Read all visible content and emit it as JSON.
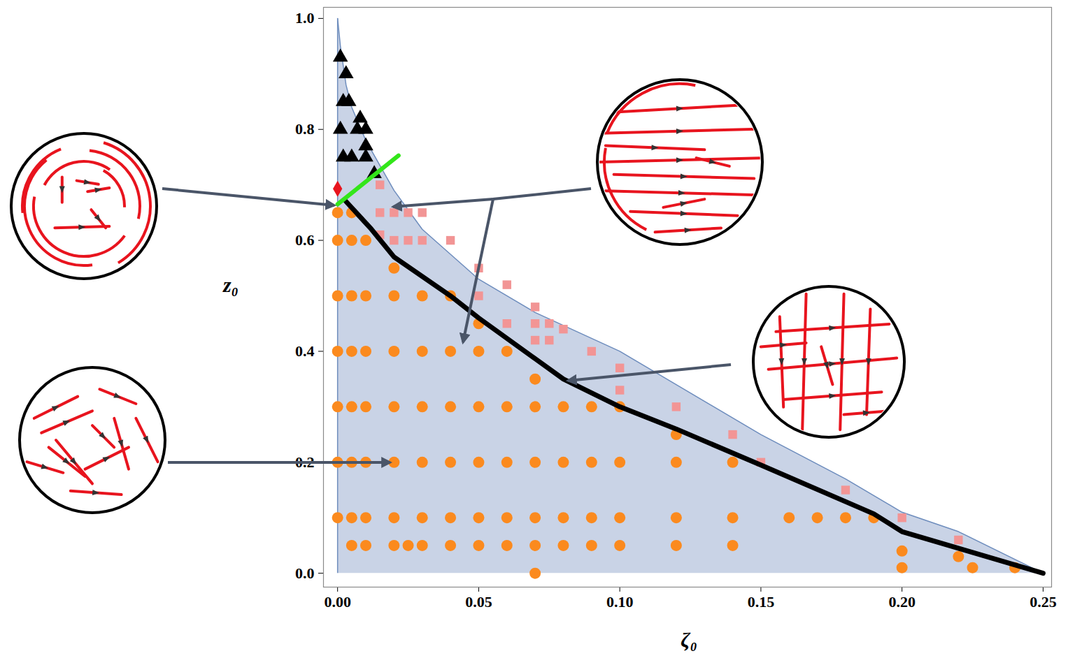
{
  "chart_data": {
    "type": "scatter",
    "x_label": "ζ₀",
    "y_label": "z₀",
    "xlim": [
      -0.005,
      0.253
    ],
    "ylim": [
      -0.025,
      1.02
    ],
    "xticks": [
      {
        "value": 0,
        "label": "0.00"
      },
      {
        "value": 0.05,
        "label": "0.05"
      },
      {
        "value": 0.1,
        "label": "0.10"
      },
      {
        "value": 0.15,
        "label": "0.15"
      },
      {
        "value": 0.2,
        "label": "0.20"
      },
      {
        "value": 0.25,
        "label": "0.25"
      }
    ],
    "yticks": [
      {
        "value": 0,
        "label": "0.0"
      },
      0.2,
      0.4,
      0.6,
      0.8,
      {
        "value": 1,
        "label": "1.0"
      }
    ],
    "series": [
      {
        "type": "area",
        "color": "#c9d3e6",
        "x": [
          0,
          0.001,
          0.003,
          0.005,
          0.01,
          0.02,
          0.03,
          0.05,
          0.07,
          0.1,
          0.12,
          0.15,
          0.18,
          0.2,
          0.22,
          0.25
        ],
        "values": [
          1.0,
          0.95,
          0.88,
          0.84,
          0.78,
          0.69,
          0.62,
          0.53,
          0.47,
          0.4,
          0.34,
          0.25,
          0.17,
          0.11,
          0.075,
          0.0
        ]
      },
      {
        "type": "scatter",
        "marker": "circle",
        "color": "#fb8a1e",
        "x": [
          0,
          0.005,
          0,
          0.005,
          0.01,
          0.02,
          0,
          0.005,
          0.01,
          0.02,
          0.03,
          0.04,
          0.05,
          0,
          0.005,
          0.01,
          0.02,
          0.03,
          0.04,
          0.05,
          0.06,
          0.07,
          0,
          0.005,
          0.01,
          0.02,
          0.03,
          0.04,
          0.05,
          0.06,
          0.07,
          0.08,
          0.09,
          0.1,
          0.12,
          0,
          0.005,
          0.01,
          0.02,
          0.03,
          0.04,
          0.05,
          0.06,
          0.07,
          0.08,
          0.09,
          0.1,
          0.12,
          0.14,
          0,
          0.005,
          0.01,
          0.02,
          0.03,
          0.04,
          0.05,
          0.06,
          0.07,
          0.08,
          0.09,
          0.1,
          0.12,
          0.14,
          0.16,
          0.17,
          0.18,
          0.19,
          0.005,
          0.01,
          0.02,
          0.025,
          0.03,
          0.04,
          0.05,
          0.06,
          0.07,
          0.08,
          0.09,
          0.1,
          0.12,
          0.14,
          0.2,
          0.22,
          0.2,
          0.225,
          0.24,
          0.07
        ],
        "values": [
          0.65,
          0.65,
          0.6,
          0.6,
          0.6,
          0.55,
          0.5,
          0.5,
          0.5,
          0.5,
          0.5,
          0.5,
          0.45,
          0.4,
          0.4,
          0.4,
          0.4,
          0.4,
          0.4,
          0.4,
          0.4,
          0.35,
          0.3,
          0.3,
          0.3,
          0.3,
          0.3,
          0.3,
          0.3,
          0.3,
          0.3,
          0.3,
          0.3,
          0.3,
          0.25,
          0.2,
          0.2,
          0.2,
          0.2,
          0.2,
          0.2,
          0.2,
          0.2,
          0.2,
          0.2,
          0.2,
          0.2,
          0.2,
          0.2,
          0.1,
          0.1,
          0.1,
          0.1,
          0.1,
          0.1,
          0.1,
          0.1,
          0.1,
          0.1,
          0.1,
          0.1,
          0.1,
          0.1,
          0.1,
          0.1,
          0.1,
          0.1,
          0.05,
          0.05,
          0.05,
          0.05,
          0.05,
          0.05,
          0.05,
          0.05,
          0.05,
          0.05,
          0.05,
          0.05,
          0.05,
          0.05,
          0.04,
          0.03,
          0.01,
          0.01,
          0.01,
          0.0
        ]
      },
      {
        "type": "scatter",
        "marker": "square",
        "color": "#f29595",
        "x": [
          0.015,
          0.015,
          0.02,
          0.025,
          0.03,
          0.015,
          0.02,
          0.025,
          0.03,
          0.04,
          0.05,
          0.06,
          0.05,
          0.06,
          0.07,
          0.07,
          0.075,
          0.08,
          0.07,
          0.075,
          0.09,
          0.1,
          0.1,
          0.12,
          0.14,
          0.15,
          0.18,
          0.2,
          0.22
        ],
        "values": [
          0.7,
          0.65,
          0.65,
          0.65,
          0.65,
          0.61,
          0.6,
          0.6,
          0.6,
          0.6,
          0.55,
          0.52,
          0.5,
          0.45,
          0.48,
          0.45,
          0.45,
          0.44,
          0.42,
          0.42,
          0.4,
          0.37,
          0.33,
          0.3,
          0.25,
          0.2,
          0.15,
          0.1,
          0.06
        ]
      },
      {
        "type": "scatter",
        "marker": "triangle",
        "color": "#000000",
        "x": [
          0.001,
          0.003,
          0.002,
          0.004,
          0.001,
          0.007,
          0.01,
          0.008,
          0.002,
          0.005,
          0.01,
          0.01,
          0.013
        ],
        "values": [
          0.93,
          0.9,
          0.85,
          0.85,
          0.8,
          0.8,
          0.8,
          0.82,
          0.75,
          0.75,
          0.77,
          0.75,
          0.72
        ]
      },
      {
        "type": "line",
        "line_style": "solid",
        "color": "#000000",
        "x": [
          0.003,
          0.012,
          0.02,
          0.04,
          0.05,
          0.08,
          0.1,
          0.12,
          0.15,
          0.19,
          0.2,
          0.25
        ],
        "values": [
          0.67,
          0.62,
          0.57,
          0.5,
          0.46,
          0.35,
          0.3,
          0.26,
          0.195,
          0.107,
          0.075,
          0.0
        ]
      },
      {
        "type": "line",
        "line_style": "solid",
        "color": "#33e61a",
        "x": [
          0.0,
          0.0216
        ],
        "values": [
          0.665,
          0.753
        ]
      },
      {
        "type": "scatter",
        "marker": "diamond",
        "color": "#e8141e",
        "x": [
          0.0
        ],
        "values": [
          0.693
        ]
      }
    ]
  }
}
